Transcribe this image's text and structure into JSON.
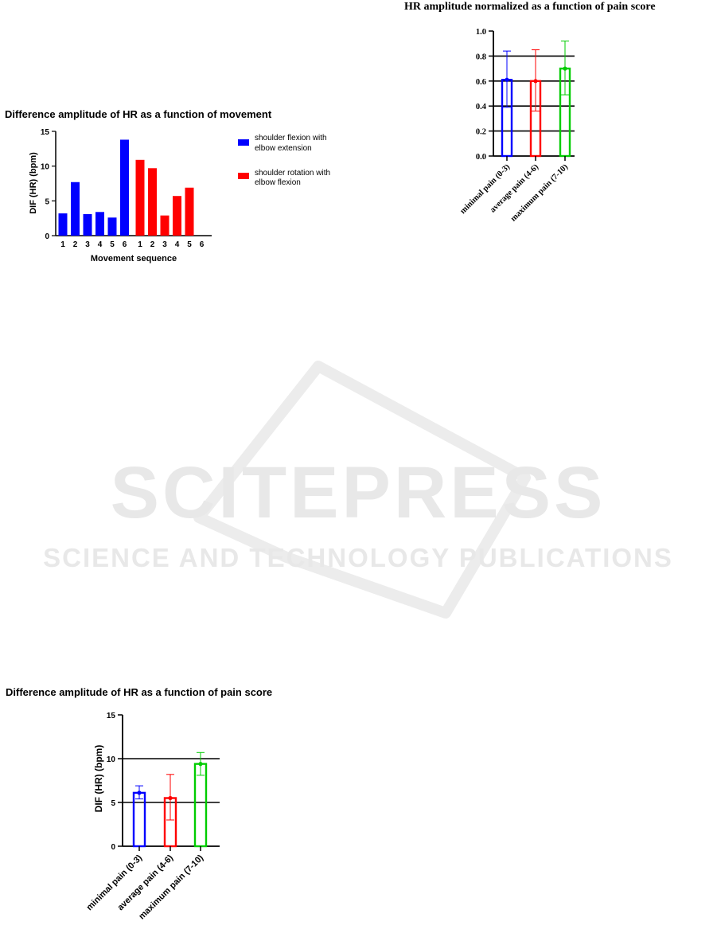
{
  "chart_data": [
    {
      "type": "bar",
      "title": "Difference amplitude of HR as a function of movement",
      "xlabel": "Movement sequence",
      "ylabel": "DIF (HR) (bpm)",
      "ylim": [
        0,
        15
      ],
      "yticks": [
        "0",
        "5",
        "10",
        "15"
      ],
      "categories": [
        "1",
        "2",
        "3",
        "4",
        "5",
        "6"
      ],
      "legend_position": "right",
      "grid": false,
      "series": [
        {
          "name": "shoulder flexion with elbow extension",
          "color": "#0000ff",
          "values": [
            3.2,
            7.7,
            3.1,
            3.4,
            2.6,
            13.8
          ]
        },
        {
          "name": "shoulder rotation with elbow flexion",
          "color": "#ff0000",
          "values": [
            10.9,
            9.7,
            2.9,
            5.7,
            6.9,
            0
          ]
        }
      ]
    },
    {
      "type": "bar",
      "title": "HR amplitude normalized as a function of pain score",
      "xlabel": "",
      "ylabel": "",
      "ylim": [
        0,
        1
      ],
      "yticks": [
        "0.0",
        "0.2",
        "0.4",
        "0.6",
        "0.8",
        "1.0"
      ],
      "categories": [
        "minimal pain (0-3)",
        "average pain (4-6)",
        "maximum pain (7-10)"
      ],
      "values": [
        0.61,
        0.6,
        0.7
      ],
      "error_low": [
        0.39,
        0.36,
        0.49
      ],
      "error_high": [
        0.84,
        0.85,
        0.92
      ],
      "colors": [
        "#0000ff",
        "#ff0000",
        "#00cc00"
      ],
      "grid_lines": [
        0.2,
        0.4,
        0.6,
        0.8
      ],
      "legend_position": "none"
    },
    {
      "type": "bar",
      "title": "Difference amplitude of HR as a function of pain score",
      "xlabel": "",
      "ylabel": "DIF (HR) (bpm)",
      "ylim": [
        0,
        15
      ],
      "yticks": [
        "0",
        "5",
        "10",
        "15"
      ],
      "categories": [
        "minimal pain (0-3)",
        "average pain (4-6)",
        "maximum pain (7-10)"
      ],
      "values": [
        6.1,
        5.5,
        9.4
      ],
      "error_low": [
        5.4,
        3.0,
        8.1
      ],
      "error_high": [
        6.9,
        8.2,
        10.7
      ],
      "colors": [
        "#0000ff",
        "#ff0000",
        "#00cc00"
      ],
      "grid_lines": [
        5,
        10
      ],
      "legend_position": "none"
    }
  ],
  "watermark": {
    "big": "SCITEPRESS",
    "small": "SCIENCE AND TECHNOLOGY PUBLICATIONS"
  }
}
